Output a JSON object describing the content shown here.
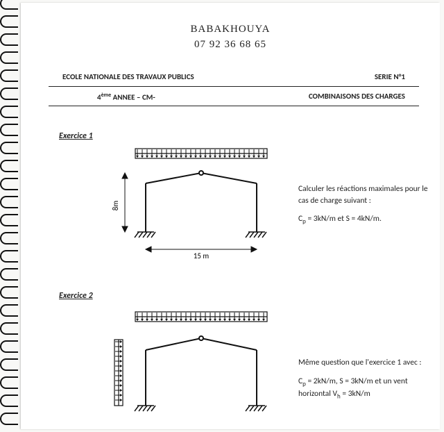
{
  "handwritten": {
    "name": "BABAKHOUYA",
    "phone": "07 92 36 68 65"
  },
  "header": {
    "school": "ECOLE NATIONALE DES TRAVAUX PUBLICS",
    "serie": "SERIE N°1",
    "year_prefix": "4",
    "year_suffix": " ANNEE – CM-",
    "year_super": "ème",
    "subject": "COMBINAISONS DES CHARGES"
  },
  "exercice1": {
    "title": "Exercice 1",
    "text_line1": "Calculer les réactions maximales pour le cas de charge suivant :",
    "text_line2_a": "C",
    "text_line2_b": " = 3kN/m et S = 4kN/m.",
    "sub_p": "p",
    "diagram": {
      "span_label": "15 m",
      "height_label": "8m",
      "height_m": 8,
      "span_m": 15,
      "stroke": "#111111",
      "load_top": true
    }
  },
  "exercice2": {
    "title": "Exercice 2",
    "text_line1": "Même question que l'exercice 1 avec :",
    "text_line2_a": "C",
    "text_line2_b": " = 2kN/m, S = 3kN/m et un vent horizontal V",
    "text_line2_c": " = 3kN/m",
    "sub_p": "p",
    "sub_h": "h",
    "diagram": {
      "stroke": "#111111",
      "load_top": true,
      "load_side": true
    }
  },
  "binding": {
    "count": 24,
    "pitch": 26,
    "color": "#111111"
  },
  "colors": {
    "page_bg": "#ffffff",
    "body_bg": "#f8f8f6",
    "text": "#222222"
  }
}
